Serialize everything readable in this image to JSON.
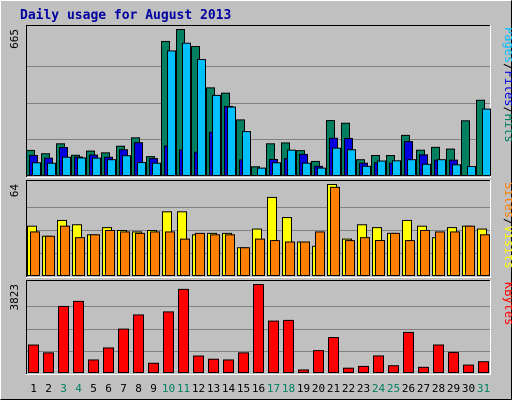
{
  "chart_data": {
    "type": "bar",
    "title": "Daily usage for August 2013",
    "days": [
      "1",
      "2",
      "3",
      "4",
      "5",
      "6",
      "7",
      "8",
      "9",
      "10",
      "11",
      "12",
      "13",
      "14",
      "15",
      "16",
      "17",
      "18",
      "19",
      "20",
      "21",
      "22",
      "23",
      "24",
      "25",
      "26",
      "27",
      "28",
      "29",
      "30",
      "31"
    ],
    "weekend_days": [
      "3",
      "4",
      "10",
      "11",
      "17",
      "18",
      "24",
      "25",
      "31"
    ],
    "panels": [
      {
        "id": "traffic",
        "ymax": 665,
        "ymax_label": "665",
        "legend": [
          "Pages",
          "/",
          "Files",
          "/",
          "Hits"
        ],
        "legend_colors": [
          "#00c0ff",
          "#000000",
          "#0000e0",
          "#000000",
          "#008060"
        ],
        "series": [
          {
            "name": "Hits",
            "color": "#008060",
            "values": [
              118,
              103,
              148,
              96,
              115,
              107,
              137,
              175,
              90,
              611,
              665,
              588,
              401,
              377,
              256,
              44,
              148,
              152,
              117,
              68,
              253,
              241,
              76,
              95,
              95,
              186,
              119,
              132,
              124,
              252,
              345
            ]
          },
          {
            "name": "Files",
            "color": "#0000e0",
            "values": [
              95,
              83,
              131,
              88,
              97,
              87,
              121,
              153,
              81,
              138,
              120,
              110,
              200,
              317,
              75,
              0,
              77,
              81,
              100,
              46,
              173,
              172,
              60,
              62,
              60,
              158,
              98,
              74,
              74,
              0,
              0
            ]
          },
          {
            "name": "Pages",
            "color": "#00c0ff",
            "values": [
              62,
              60,
              87,
              84,
              83,
              76,
              94,
              63,
              60,
              568,
              603,
              529,
              367,
              314,
              203,
              38,
              62,
              119,
              60,
              38,
              128,
              121,
              46,
              70,
              71,
              76,
              55,
              76,
              53,
              45,
              305
            ]
          }
        ]
      },
      {
        "id": "visits",
        "ymax": 64,
        "ymax_label": "64",
        "legend": [
          "Sites",
          "/",
          "Visits"
        ],
        "legend_colors": [
          "#ff8000",
          "#000000",
          "#ffff00"
        ],
        "series": [
          {
            "name": "Visits",
            "color": "#ffff00",
            "values": [
              35,
              28,
              39,
              36,
              29,
              34,
              32,
              31,
              32,
              45,
              45,
              29,
              30,
              30,
              20,
              33,
              55,
              41,
              24,
              21,
              64,
              26,
              36,
              34,
              30,
              39,
              35,
              27,
              34,
              35,
              33
            ]
          },
          {
            "name": "Sites",
            "color": "#ff8000",
            "values": [
              31,
              28,
              35,
              27,
              29,
              32,
              31,
              30,
              31,
              31,
              26,
              30,
              29,
              29,
              20,
              26,
              25,
              24,
              24,
              31,
              62,
              25,
              27,
              25,
              30,
              25,
              32,
              31,
              31,
              35,
              29
            ]
          }
        ]
      },
      {
        "id": "kbytes",
        "ymax": 3823,
        "ymax_label": "3823",
        "legend": [
          "KBytes"
        ],
        "legend_colors": [
          "#ff0000"
        ],
        "series": [
          {
            "name": "KBytes",
            "color": "#ff0000",
            "values": [
              1223,
              887,
              2881,
              3098,
              581,
              1098,
              1907,
              2515,
              440,
              2646,
              3614,
              751,
              613,
              582,
              887,
              3823,
              2251,
              2281,
              152,
              983,
              1546,
              228,
              305,
              755,
              334,
              1765,
              265,
              1224,
              905,
              362,
              507
            ]
          }
        ]
      }
    ]
  }
}
